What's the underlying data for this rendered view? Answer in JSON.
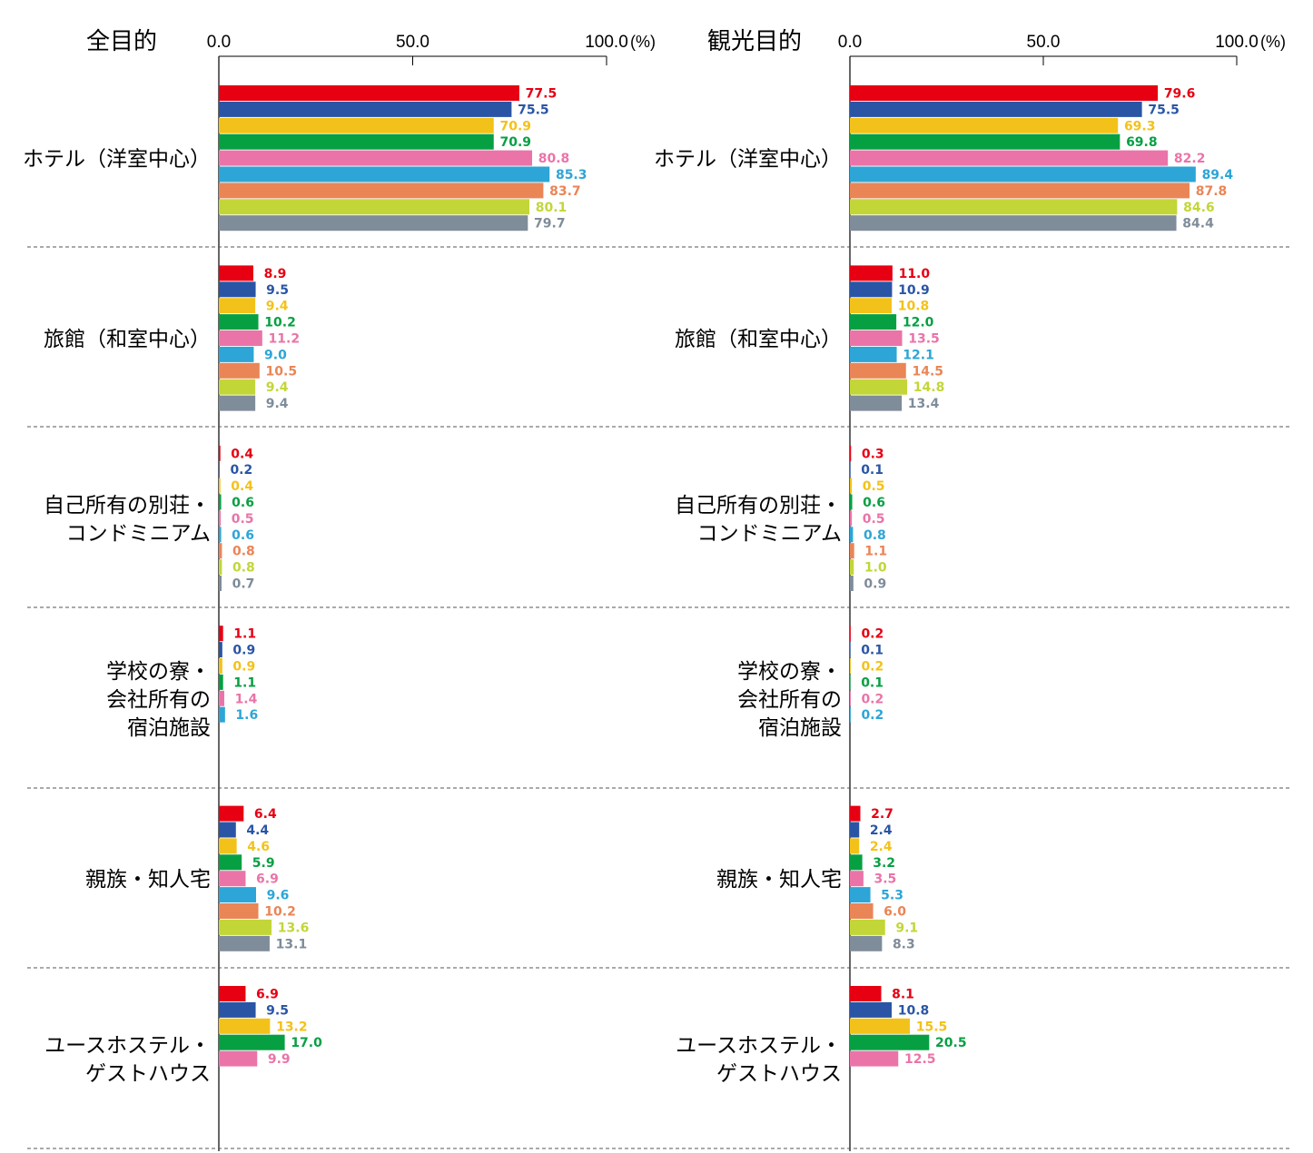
{
  "chart_data": [
    {
      "type": "bar",
      "orientation": "horizontal",
      "title": "全目的",
      "unit": "(%)",
      "xlim": [
        0,
        100
      ],
      "ticks": [
        "0.0",
        "50.0",
        "100.0"
      ],
      "categories": [
        {
          "label": [
            "ホテル（洋室中心）"
          ],
          "values": [
            77.5,
            75.5,
            70.9,
            70.9,
            80.8,
            85.3,
            83.7,
            80.1,
            79.7
          ],
          "labels": [
            "77.5",
            "75.5",
            "70.9",
            "70.9",
            "80.8",
            "85.3",
            "83.7",
            "80.1",
            "79.7"
          ]
        },
        {
          "label": [
            "旅館（和室中心）"
          ],
          "values": [
            8.9,
            9.5,
            9.4,
            10.2,
            11.2,
            9.0,
            10.5,
            9.4,
            9.4
          ],
          "labels": [
            "8.9",
            "9.5",
            "9.4",
            "10.2",
            "11.2",
            "9.0",
            "10.5",
            "9.4",
            "9.4"
          ]
        },
        {
          "label": [
            "自己所有の別荘・",
            "コンドミニアム"
          ],
          "values": [
            0.4,
            0.2,
            0.4,
            0.6,
            0.5,
            0.6,
            0.8,
            0.8,
            0.7
          ],
          "labels": [
            "0.4",
            "0.2",
            "0.4",
            "0.6",
            "0.5",
            "0.6",
            "0.8",
            "0.8",
            "0.7"
          ]
        },
        {
          "label": [
            "学校の寮・",
            "会社所有の",
            "宿泊施設"
          ],
          "values": [
            1.1,
            0.9,
            0.9,
            1.1,
            1.4,
            1.6
          ],
          "labels": [
            "1.1",
            "0.9",
            "0.9",
            "1.1",
            "1.4",
            "1.6"
          ]
        },
        {
          "label": [
            "親族・知人宅"
          ],
          "values": [
            6.4,
            4.4,
            4.6,
            5.9,
            6.9,
            9.6,
            10.2,
            13.6,
            13.1
          ],
          "labels": [
            "6.4",
            "4.4",
            "4.6",
            "5.9",
            "6.9",
            "9.6",
            "10.2",
            "13.6",
            "13.1"
          ]
        },
        {
          "label": [
            "ユースホステル・",
            "ゲストハウス"
          ],
          "values": [
            6.9,
            9.5,
            13.2,
            17.0,
            9.9
          ],
          "labels": [
            "6.9",
            "9.5",
            "13.2",
            "17.0",
            "9.9"
          ]
        }
      ]
    },
    {
      "type": "bar",
      "orientation": "horizontal",
      "title": "観光目的",
      "unit": "(%)",
      "xlim": [
        0,
        100
      ],
      "ticks": [
        "0.0",
        "50.0",
        "100.0"
      ],
      "categories": [
        {
          "label": [
            "ホテル（洋室中心）"
          ],
          "values": [
            79.6,
            75.5,
            69.3,
            69.8,
            82.2,
            89.4,
            87.8,
            84.6,
            84.4
          ],
          "labels": [
            "79.6",
            "75.5",
            "69.3",
            "69.8",
            "82.2",
            "89.4",
            "87.8",
            "84.6",
            "84.4"
          ]
        },
        {
          "label": [
            "旅館（和室中心）"
          ],
          "values": [
            11.0,
            10.9,
            10.8,
            12.0,
            13.5,
            12.1,
            14.5,
            14.8,
            13.4
          ],
          "labels": [
            "11.0",
            "10.9",
            "10.8",
            "12.0",
            "13.5",
            "12.1",
            "14.5",
            "14.8",
            "13.4"
          ]
        },
        {
          "label": [
            "自己所有の別荘・",
            "コンドミニアム"
          ],
          "values": [
            0.3,
            0.1,
            0.5,
            0.6,
            0.5,
            0.8,
            1.1,
            1.0,
            0.9
          ],
          "labels": [
            "0.3",
            "0.1",
            "0.5",
            "0.6",
            "0.5",
            "0.8",
            "1.1",
            "1.0",
            "0.9"
          ]
        },
        {
          "label": [
            "学校の寮・",
            "会社所有の",
            "宿泊施設"
          ],
          "values": [
            0.2,
            0.1,
            0.2,
            0.1,
            0.2,
            0.2
          ],
          "labels": [
            "0.2",
            "0.1",
            "0.2",
            "0.1",
            "0.2",
            "0.2"
          ]
        },
        {
          "label": [
            "親族・知人宅"
          ],
          "values": [
            2.7,
            2.4,
            2.4,
            3.2,
            3.5,
            5.3,
            6.0,
            9.1,
            8.3
          ],
          "labels": [
            "2.7",
            "2.4",
            "2.4",
            "3.2",
            "3.5",
            "5.3",
            "6.0",
            "9.1",
            "8.3"
          ]
        },
        {
          "label": [
            "ユースホステル・",
            "ゲストハウス"
          ],
          "values": [
            8.1,
            10.8,
            15.5,
            20.5,
            12.5
          ],
          "labels": [
            "8.1",
            "10.8",
            "15.5",
            "20.5",
            "12.5"
          ]
        }
      ]
    }
  ],
  "series_colors": [
    "#e60012",
    "#2a55a5",
    "#f3c21a",
    "#06a043",
    "#ea74a8",
    "#2da5d6",
    "#ea8556",
    "#c2d638",
    "#7f8c99"
  ]
}
